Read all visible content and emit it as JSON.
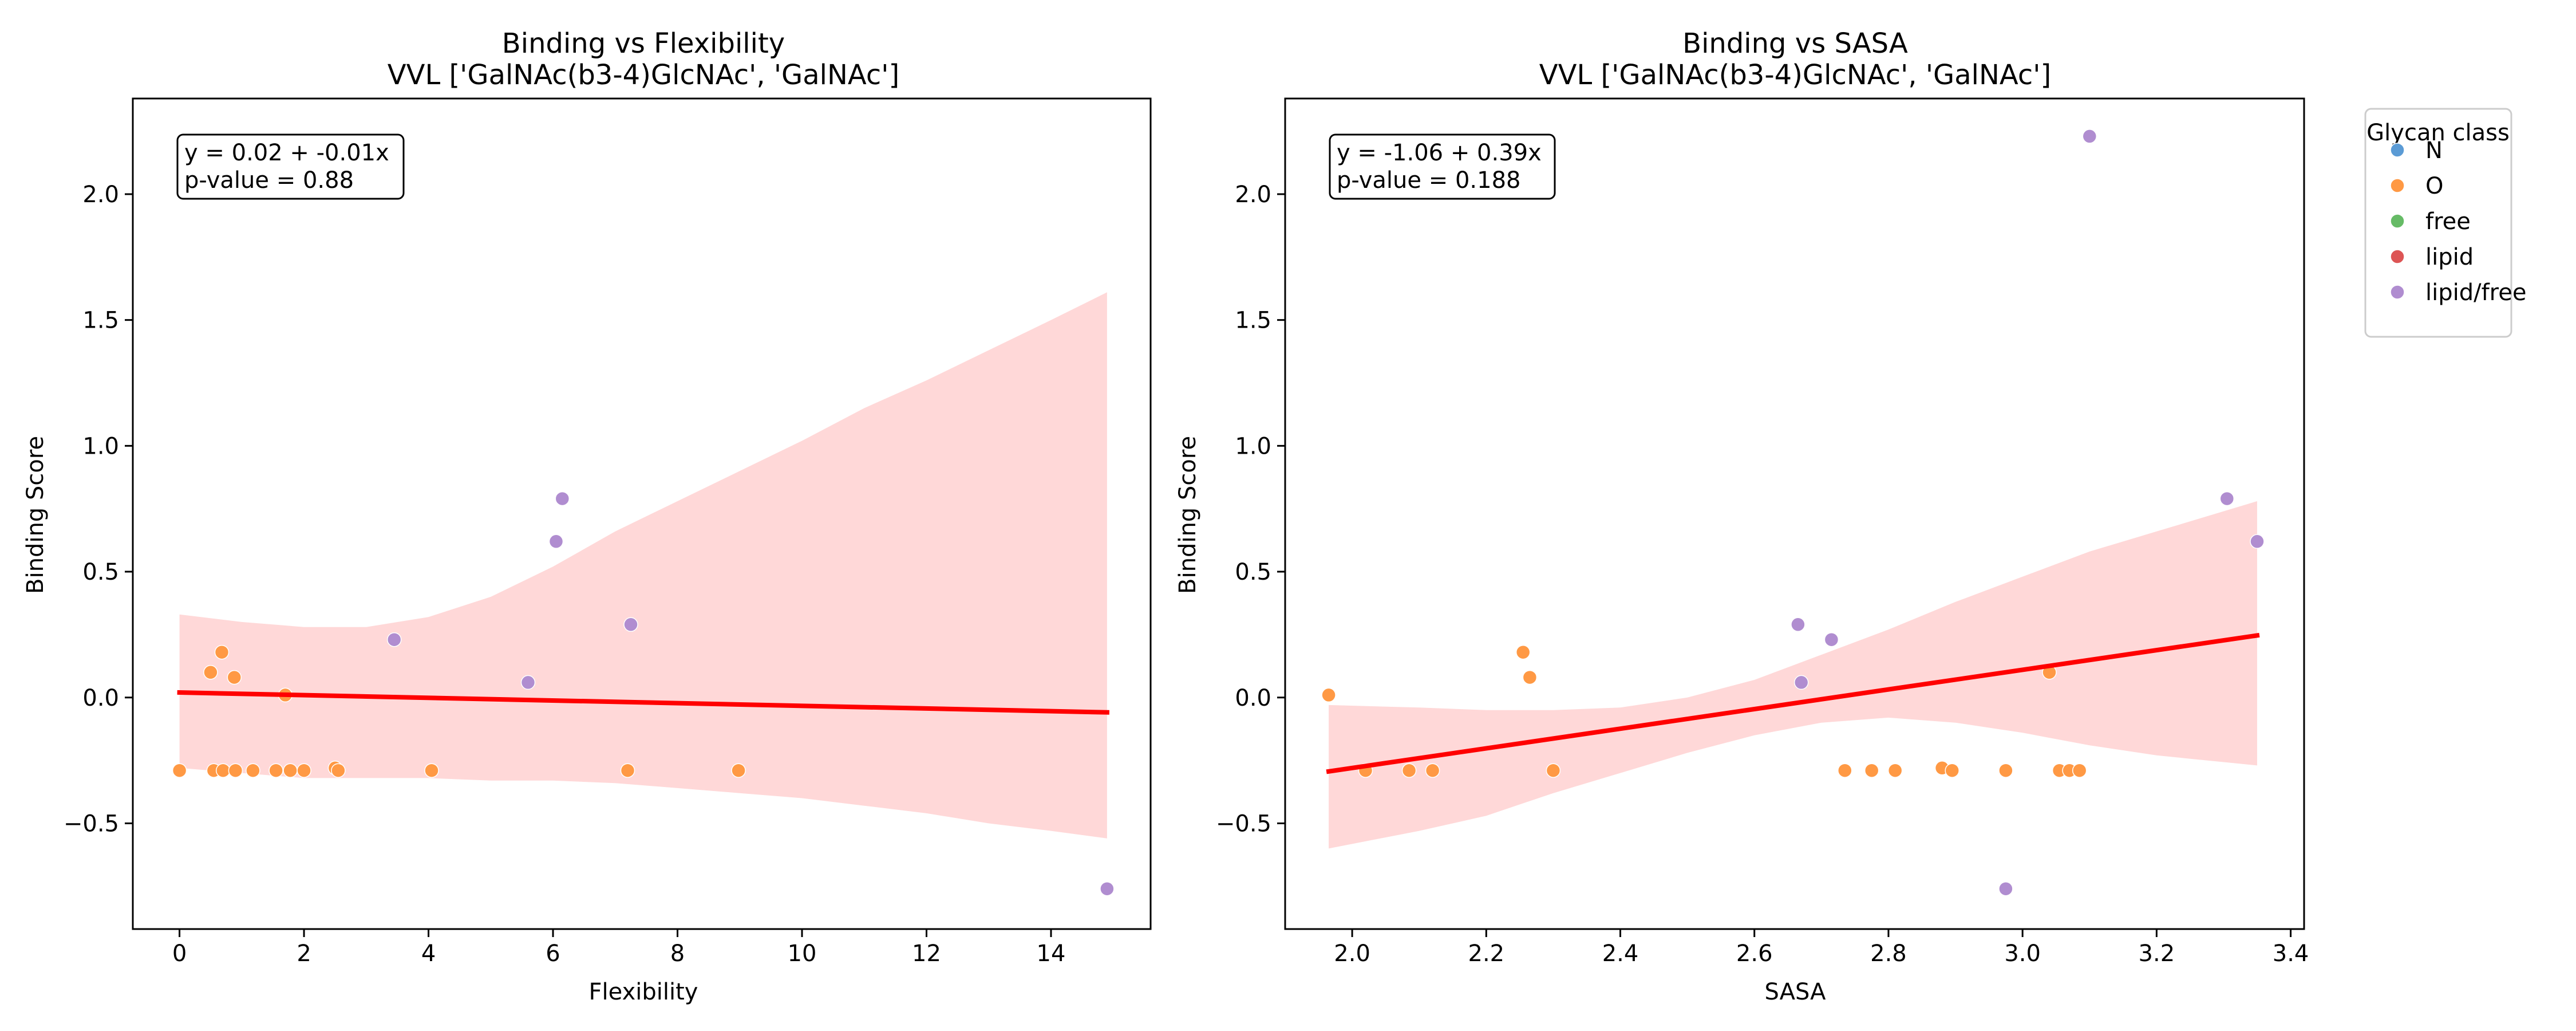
{
  "chart_data": [
    {
      "type": "scatter",
      "title": "Binding vs Flexibility",
      "subtitle": "VVL ['GalNAc(b3-4)GlcNAc', 'GalNAc']",
      "xlabel": "Flexibility",
      "ylabel": "Binding Score",
      "xlim": [
        -0.75,
        15.6
      ],
      "ylim": [
        -0.92,
        2.38
      ],
      "xticks": [
        "0",
        "2",
        "4",
        "6",
        "8",
        "10",
        "12",
        "14"
      ],
      "yticks": [
        "−0.5",
        "0.0",
        "0.5",
        "1.0",
        "1.5",
        "2.0"
      ],
      "annotation": [
        "y = 0.02 + -0.01x",
        "p-value = 0.88"
      ],
      "regression": {
        "intercept": 0.02,
        "slope": -0.0053,
        "x_range": [
          0.0,
          14.9
        ],
        "color": "#ff0000"
      },
      "ci_band": {
        "x": [
          0.0,
          1.0,
          2.0,
          3.0,
          4.0,
          5.0,
          6.0,
          7.0,
          8.0,
          9.0,
          10.0,
          11.0,
          12.0,
          13.0,
          14.0,
          14.9
        ],
        "upper": [
          0.33,
          0.3,
          0.28,
          0.28,
          0.32,
          0.4,
          0.52,
          0.66,
          0.78,
          0.9,
          1.02,
          1.15,
          1.26,
          1.38,
          1.5,
          1.61
        ],
        "lower": [
          -0.28,
          -0.3,
          -0.32,
          -0.32,
          -0.32,
          -0.33,
          -0.33,
          -0.34,
          -0.36,
          -0.38,
          -0.4,
          -0.43,
          -0.46,
          -0.5,
          -0.53,
          -0.56
        ],
        "color": "#ffd8d8"
      },
      "series": [
        {
          "name": "O",
          "color": "#ff9944",
          "x": [
            0.0,
            0.5,
            0.55,
            0.68,
            0.7,
            0.88,
            0.9,
            1.18,
            1.55,
            1.7,
            1.78,
            2.0,
            2.5,
            2.55,
            4.05,
            7.2,
            8.98
          ],
          "y": [
            -0.29,
            0.1,
            -0.29,
            0.18,
            -0.29,
            0.08,
            -0.29,
            -0.29,
            -0.29,
            0.01,
            -0.29,
            -0.29,
            -0.28,
            -0.29,
            -0.29,
            -0.29,
            -0.29
          ]
        },
        {
          "name": "lipid/free",
          "color": "#b08dd0",
          "x": [
            3.45,
            5.6,
            6.05,
            6.15,
            7.25,
            14.9
          ],
          "y": [
            0.23,
            0.06,
            0.62,
            0.79,
            0.29,
            -0.76
          ]
        }
      ]
    },
    {
      "type": "scatter",
      "title": "Binding vs SASA",
      "subtitle": "VVL ['GalNAc(b3-4)GlcNAc', 'GalNAc']",
      "xlabel": "SASA",
      "ylabel": "Binding Score",
      "xlim": [
        1.9,
        3.42
      ],
      "ylim": [
        -0.92,
        2.38
      ],
      "xticks": [
        "2.0",
        "2.2",
        "2.4",
        "2.6",
        "2.8",
        "3.0",
        "3.2",
        "3.4"
      ],
      "yticks": [
        "−0.5",
        "0.0",
        "0.5",
        "1.0",
        "1.5",
        "2.0"
      ],
      "annotation": [
        "y = -1.06 + 0.39x",
        "p-value = 0.188"
      ],
      "regression": {
        "intercept": -1.06,
        "slope": 0.39,
        "x_range": [
          1.965,
          3.35
        ],
        "color": "#ff0000"
      },
      "ci_band": {
        "x": [
          1.965,
          2.1,
          2.2,
          2.3,
          2.4,
          2.5,
          2.6,
          2.7,
          2.8,
          2.9,
          3.0,
          3.1,
          3.2,
          3.35
        ],
        "upper": [
          -0.03,
          -0.04,
          -0.05,
          -0.05,
          -0.04,
          0.0,
          0.07,
          0.17,
          0.27,
          0.38,
          0.48,
          0.58,
          0.66,
          0.78
        ],
        "lower": [
          -0.6,
          -0.53,
          -0.47,
          -0.38,
          -0.3,
          -0.22,
          -0.15,
          -0.1,
          -0.08,
          -0.1,
          -0.14,
          -0.19,
          -0.23,
          -0.27
        ],
        "color": "#ffd8d8"
      },
      "series": [
        {
          "name": "O",
          "color": "#ff9944",
          "x": [
            1.965,
            2.02,
            2.085,
            2.12,
            2.255,
            2.265,
            2.3,
            2.735,
            2.775,
            2.81,
            2.88,
            2.895,
            2.975,
            3.04,
            3.055,
            3.07,
            3.085
          ],
          "y": [
            0.01,
            -0.29,
            -0.29,
            -0.29,
            0.18,
            0.08,
            -0.29,
            -0.29,
            -0.29,
            -0.29,
            -0.28,
            -0.29,
            -0.29,
            0.1,
            -0.29,
            -0.29,
            -0.29
          ]
        },
        {
          "name": "lipid/free",
          "color": "#b08dd0",
          "x": [
            2.665,
            2.67,
            2.715,
            2.975,
            3.1,
            3.305,
            3.35
          ],
          "y": [
            0.29,
            0.06,
            0.23,
            -0.76,
            2.23,
            0.79,
            0.62
          ]
        }
      ]
    }
  ],
  "legend": {
    "title": "Glycan class",
    "placement": "outside-right",
    "items": [
      {
        "label": "N",
        "color": "#5b9bd5"
      },
      {
        "label": "O",
        "color": "#ff9944"
      },
      {
        "label": "free",
        "color": "#66bb66"
      },
      {
        "label": "lipid",
        "color": "#dd5555"
      },
      {
        "label": "lipid/free",
        "color": "#b08dd0"
      }
    ]
  }
}
